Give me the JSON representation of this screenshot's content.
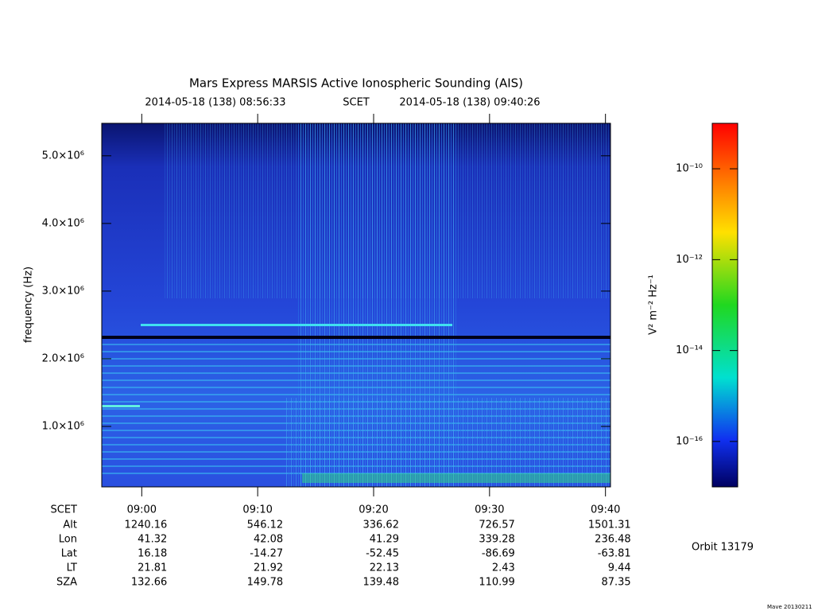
{
  "chart_data": {
    "type": "spectrogram",
    "title": "Mars Express MARSIS Active Ionospheric Sounding (AIS)",
    "subtitle_start": "2014-05-18 (138) 08:56:33",
    "subtitle_mid": "SCET",
    "subtitle_end": "2014-05-18 (138) 09:40:26",
    "ylabel": "frequency (Hz)",
    "xlim": [
      "08:56:33",
      "09:40:26"
    ],
    "xticks": [
      "09:00",
      "09:10",
      "09:20",
      "09:30",
      "09:40"
    ],
    "ylim": [
      106000,
      5480000
    ],
    "yticks": [
      {
        "value": 1000000,
        "label": "1.0×10⁶"
      },
      {
        "value": 2000000,
        "label": "2.0×10⁶"
      },
      {
        "value": 3000000,
        "label": "3.0×10⁶"
      },
      {
        "value": 4000000,
        "label": "4.0×10⁶"
      },
      {
        "value": 5000000,
        "label": "5.0×10⁶"
      }
    ],
    "colorbar": {
      "label": "V² m⁻² Hz⁻¹",
      "log": true,
      "lim": [
        1e-17,
        1e-09
      ],
      "ticks": [
        {
          "value": 1e-10,
          "label": "10⁻¹⁰"
        },
        {
          "value": 1e-12,
          "label": "10⁻¹²"
        },
        {
          "value": 1e-14,
          "label": "10⁻¹⁴"
        },
        {
          "value": 1e-16,
          "label": "10⁻¹⁶"
        }
      ]
    },
    "ephemeris": {
      "time_label": "SCET",
      "rows": [
        {
          "label": "Alt",
          "values": [
            1240.16,
            546.12,
            336.62,
            726.57,
            1501.31
          ]
        },
        {
          "label": "Lon",
          "values": [
            41.32,
            42.08,
            41.29,
            339.28,
            236.48
          ]
        },
        {
          "label": "Lat",
          "values": [
            16.18,
            -14.27,
            -52.45,
            -86.69,
            -63.81
          ]
        },
        {
          "label": "LT",
          "values": [
            21.81,
            21.92,
            22.13,
            2.43,
            9.44
          ]
        },
        {
          "label": "SZA",
          "values": [
            132.66,
            149.78,
            139.48,
            110.99,
            87.35
          ]
        }
      ]
    },
    "orbit": "Orbit 13179",
    "footer": "Mave 20130211"
  }
}
